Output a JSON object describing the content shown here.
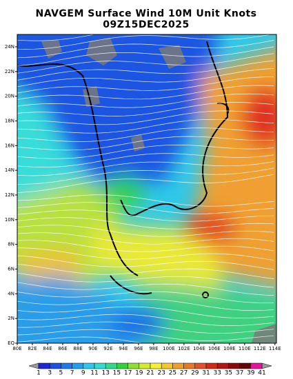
{
  "title": "NAVGEM Surface Wind 10M Unit Knots",
  "subtitle": "09Z15DEC2025",
  "map": {
    "lon_range": [
      80,
      114.2
    ],
    "lat_range": [
      0,
      25
    ],
    "lon_ticks": [
      {
        "value": 80,
        "label": "80E"
      },
      {
        "value": 82,
        "label": "82E"
      },
      {
        "value": 84,
        "label": "84E"
      },
      {
        "value": 86,
        "label": "86E"
      },
      {
        "value": 88,
        "label": "88E"
      },
      {
        "value": 90,
        "label": "90E"
      },
      {
        "value": 92,
        "label": "92E"
      },
      {
        "value": 94,
        "label": "94E"
      },
      {
        "value": 96,
        "label": "96E"
      },
      {
        "value": 98,
        "label": "98E"
      },
      {
        "value": 100,
        "label": "100E"
      },
      {
        "value": 102,
        "label": "102E"
      },
      {
        "value": 104,
        "label": "104E"
      },
      {
        "value": 106,
        "label": "106E"
      },
      {
        "value": 108,
        "label": "108E"
      },
      {
        "value": 110,
        "label": "110E"
      },
      {
        "value": 112,
        "label": "112E"
      },
      {
        "value": 114,
        "label": "114E"
      }
    ],
    "lat_ticks": [
      {
        "value": 0,
        "label": "EQ"
      },
      {
        "value": 2,
        "label": "2N"
      },
      {
        "value": 4,
        "label": "4N"
      },
      {
        "value": 6,
        "label": "6N"
      },
      {
        "value": 8,
        "label": "8N"
      },
      {
        "value": 10,
        "label": "10N"
      },
      {
        "value": 12,
        "label": "12N"
      },
      {
        "value": 14,
        "label": "14N"
      },
      {
        "value": 16,
        "label": "16N"
      },
      {
        "value": 18,
        "label": "18N"
      },
      {
        "value": 20,
        "label": "20N"
      },
      {
        "value": 22,
        "label": "22N"
      },
      {
        "value": 24,
        "label": "24N"
      }
    ]
  },
  "colorbar": {
    "labels": [
      1,
      3,
      5,
      7,
      9,
      11,
      13,
      15,
      17,
      19,
      21,
      23,
      25,
      27,
      29,
      31,
      33,
      35,
      37,
      39,
      41
    ],
    "colors": [
      "#1e28d8",
      "#1e50e6",
      "#1e78ee",
      "#20a0f0",
      "#2cc8f0",
      "#30dcd0",
      "#30dc8c",
      "#30d23c",
      "#8ce030",
      "#d2eb32",
      "#f5f032",
      "#f5c828",
      "#f0a028",
      "#e67828",
      "#e65028",
      "#d22814",
      "#b41414",
      "#8c0a0a",
      "#640505",
      "#e6149b"
    ],
    "under_color": "#9a9a9a",
    "over_color": "#9a9a9a"
  }
}
